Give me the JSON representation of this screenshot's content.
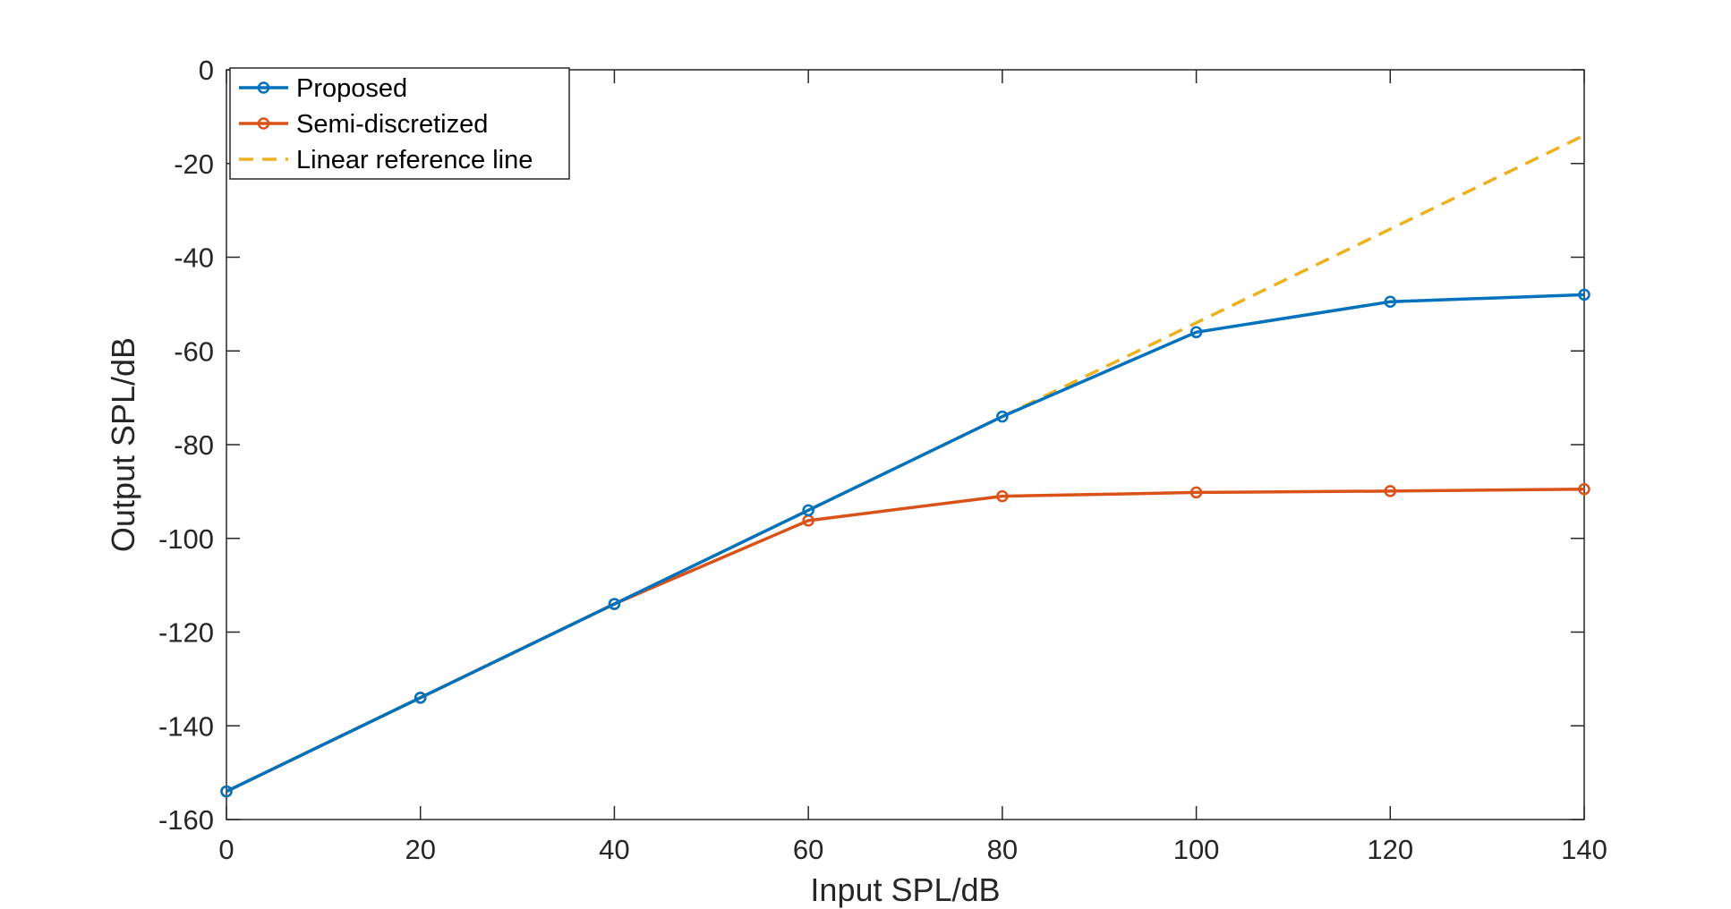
{
  "chart_data": {
    "type": "line",
    "xlabel": "Input SPL/dB",
    "ylabel": "Output SPL/dB",
    "xlim": [
      0,
      140
    ],
    "ylim": [
      -160,
      0
    ],
    "xticks": [
      "0",
      "20",
      "40",
      "60",
      "80",
      "100",
      "120",
      "140"
    ],
    "yticks": [
      "0",
      "-20",
      "-40",
      "-60",
      "-80",
      "-100",
      "-120",
      "-140",
      "-160"
    ],
    "grid": false,
    "legend_position": "top-left",
    "series": [
      {
        "name": "Proposed",
        "color": "#0072BD",
        "style": "solid",
        "marker": "circle",
        "x": [
          0,
          20,
          40,
          60,
          80,
          100,
          120,
          140
        ],
        "y": [
          -154,
          -134,
          -114,
          -94,
          -74,
          -56,
          -49.5,
          -48
        ]
      },
      {
        "name": "Semi-discretized",
        "color": "#D95319",
        "style": "solid",
        "marker": "circle",
        "x": [
          0,
          20,
          40,
          60,
          80,
          100,
          120,
          140
        ],
        "y": [
          -154,
          -134,
          -114,
          -96.2,
          -91,
          -90.2,
          -89.9,
          -89.5
        ]
      },
      {
        "name": "Linear reference line",
        "color": "#EDB120",
        "style": "dashed",
        "marker": "none",
        "x": [
          0,
          140
        ],
        "y": [
          -154,
          -14
        ]
      }
    ]
  }
}
